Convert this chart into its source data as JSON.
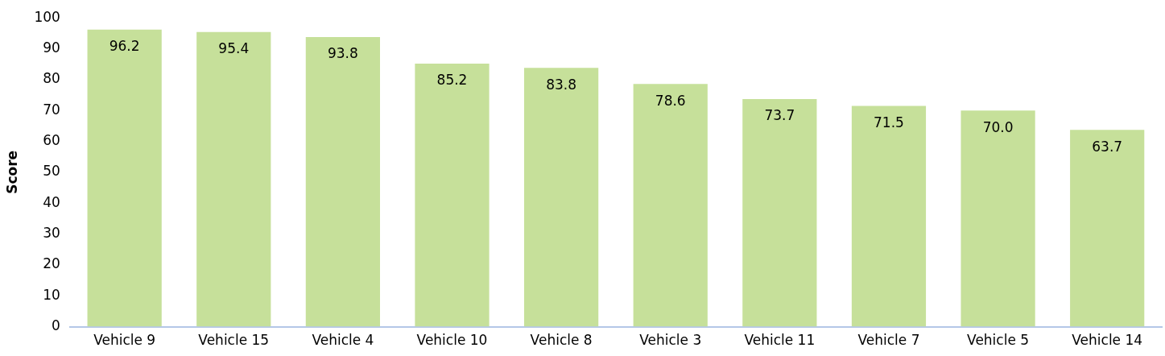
{
  "chart_data": {
    "type": "bar",
    "ylabel": "Score",
    "categories": [
      "Vehicle 9",
      "Vehicle 15",
      "Vehicle 4",
      "Vehicle 10",
      "Vehicle 8",
      "Vehicle 3",
      "Vehicle 11",
      "Vehicle 7",
      "Vehicle 5",
      "Vehicle 14"
    ],
    "values": [
      96.2,
      95.4,
      93.8,
      85.2,
      83.8,
      78.6,
      73.7,
      71.5,
      70.0,
      63.7
    ],
    "color": "#c6e09a",
    "ylim": [
      0,
      100
    ],
    "yticks": [
      0,
      10,
      20,
      30,
      40,
      50,
      60,
      70,
      80,
      90,
      100
    ],
    "grid": false,
    "legend": false,
    "value_labels": [
      "96.2",
      "95.4",
      "93.8",
      "85.2",
      "83.8",
      "78.6",
      "73.7",
      "71.5",
      "70.0",
      "63.7"
    ]
  }
}
